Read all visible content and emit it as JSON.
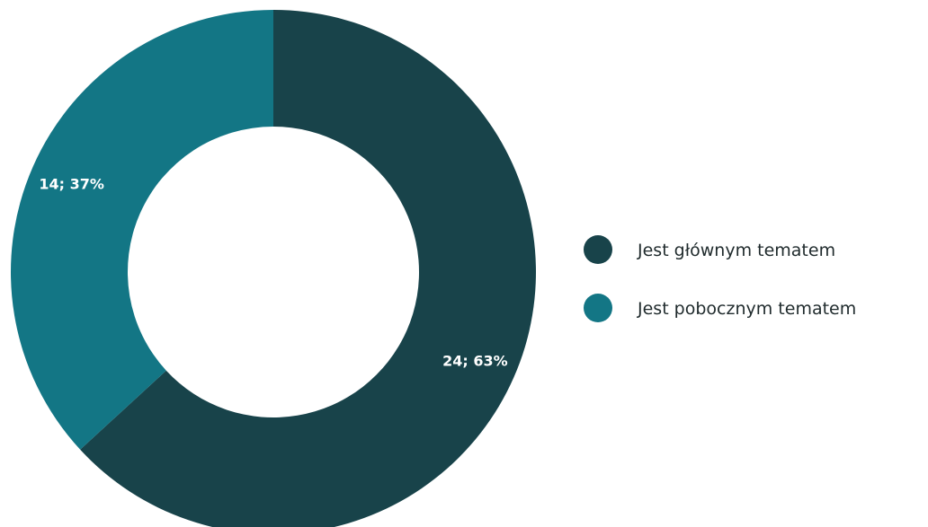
{
  "chart_data": {
    "type": "pie",
    "variant": "donut",
    "categories": [
      "Jest głównym tematem",
      "Jest pobocznym tematem"
    ],
    "values": [
      24,
      14
    ],
    "percentages": [
      63,
      37
    ],
    "data_labels": [
      "24; 63%",
      "14; 37%"
    ],
    "colors": [
      "#18434a",
      "#137685"
    ],
    "legend": {
      "position": "right",
      "entries": [
        "Jest głównym tematem",
        "Jest pobocznym tematem"
      ]
    }
  }
}
